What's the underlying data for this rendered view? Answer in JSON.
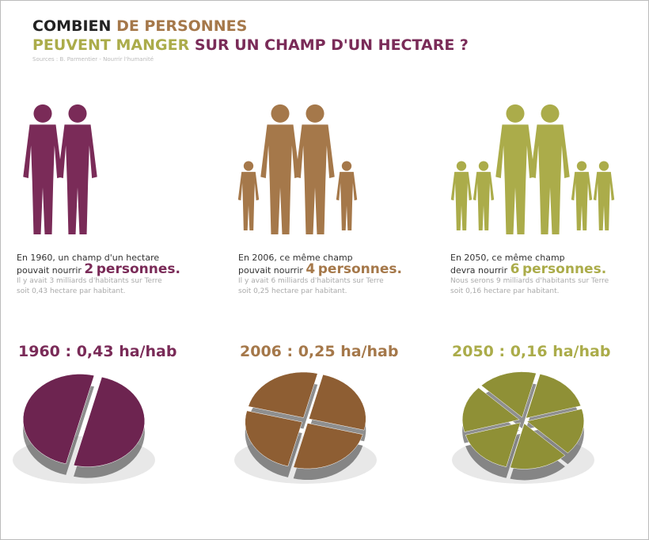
{
  "title": {
    "line1": {
      "dark": "COMBIEN",
      "light": "DE PERSONNES"
    },
    "line2": {
      "olive": "PEUVENT MANGER",
      "purple": "SUR UN CHAMP D'UN HECTARE ?"
    },
    "source": "Sources : B. Parmentier - Nourrir l'humanité"
  },
  "panels": [
    {
      "intro": "En 1960, un champ d'un hectare",
      "verb": "pouvait nourrir",
      "persons": 2,
      "unit": "personnes.",
      "note1": "Il y avait 3 milliards d'habitants sur Terre",
      "note2": "soit 0,43 hectare par habitant.",
      "heading": "1960 : 0,43 ha/hab",
      "color": "#7a2b58",
      "pie_color": "#6d2450"
    },
    {
      "intro": "En 2006, ce même champ",
      "verb": "pouvait nourrir",
      "persons": 4,
      "unit": "personnes.",
      "note1": "Il y avait 6 milliards d'habitants sur Terre",
      "note2": "soit 0,25 hectare par habitant.",
      "heading": "2006 : 0,25 ha/hab",
      "color": "#a5784a",
      "pie_color": "#8e5e33"
    },
    {
      "intro": "En 2050, ce même champ",
      "verb": "devra nourrir",
      "persons": 6,
      "unit": "personnes.",
      "note1": "Nous serons 9 milliards d'habitants sur Terre",
      "note2": "soit 0,16 hectare par habitant.",
      "heading": "2050 : 0,16 ha/hab",
      "color": "#abac4a",
      "pie_color": "#8f9036"
    }
  ]
}
